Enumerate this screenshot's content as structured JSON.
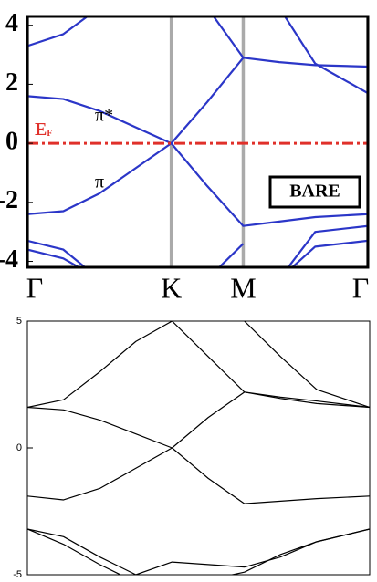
{
  "chart_data": [
    {
      "type": "line",
      "x": [
        0,
        0.25,
        0.5,
        0.75,
        1,
        1.25,
        1.5,
        1.75,
        2,
        2.366
      ],
      "xlim": [
        0,
        2.366
      ],
      "xticks": [
        {
          "value": 0,
          "label": "Γ"
        },
        {
          "value": 1,
          "label": "K"
        },
        {
          "value": 1.5,
          "label": "M"
        },
        {
          "value": 2.366,
          "label": "Γ"
        }
      ],
      "ylim": [
        -4.2,
        4.3
      ],
      "yticks": [
        -4,
        -2,
        0,
        2,
        4
      ],
      "symmetry_lines": true,
      "symmetry_line_color": "#aaaaaa",
      "fermi_level": 0,
      "fermi_color": "#e0302a",
      "fermi_label": "E",
      "fermi_label_sub": "F",
      "annotations": [
        "π*",
        "π"
      ],
      "box_label": "BARE",
      "series": [
        {
          "color": "#2b36c8",
          "values": [
            1.6,
            1.5,
            1.1,
            0.55,
            0,
            1.4,
            2.9,
            2.75,
            2.65,
            2.6
          ]
        },
        {
          "color": "#2b36c8",
          "values": [
            -2.4,
            -2.3,
            -1.7,
            -0.85,
            0,
            -1.45,
            -2.8,
            -2.65,
            -2.5,
            -2.4
          ]
        },
        {
          "color": "#2b36c8",
          "values": [
            3.3,
            3.7,
            4.6,
            null,
            null,
            null,
            null,
            null,
            null,
            null
          ]
        },
        {
          "color": "#2b36c8",
          "values": [
            null,
            null,
            null,
            null,
            null,
            4.6,
            2.9,
            null,
            null,
            null
          ]
        },
        {
          "color": "#2b36c8",
          "values": [
            null,
            null,
            null,
            null,
            null,
            null,
            null,
            4.6,
            2.7,
            1.7
          ]
        },
        {
          "color": "#2b36c8",
          "values": [
            -3.3,
            -3.6,
            -4.6,
            null,
            null,
            null,
            null,
            null,
            null,
            null
          ]
        },
        {
          "color": "#2b36c8",
          "values": [
            -3.6,
            -3.9,
            -4.6,
            null,
            null,
            null,
            null,
            null,
            null,
            null
          ]
        },
        {
          "color": "#2b36c8",
          "values": [
            null,
            null,
            null,
            null,
            null,
            -4.6,
            -3.4,
            null,
            null,
            null
          ]
        },
        {
          "color": "#2b36c8",
          "values": [
            null,
            null,
            null,
            null,
            null,
            null,
            null,
            -4.6,
            -3.0,
            -2.8
          ]
        },
        {
          "color": "#2b36c8",
          "values": [
            null,
            null,
            null,
            null,
            null,
            null,
            null,
            -4.6,
            -3.5,
            -3.3
          ]
        }
      ]
    },
    {
      "type": "line",
      "x": [
        0,
        0.25,
        0.5,
        0.75,
        1,
        1.25,
        1.5,
        1.75,
        2,
        2.366
      ],
      "xlim": [
        0,
        2.366
      ],
      "ylim": [
        -5,
        5
      ],
      "yticks": [
        -5,
        0,
        5
      ],
      "series": [
        {
          "color": "#000000",
          "values": [
            1.6,
            1.5,
            1.1,
            0.55,
            0,
            1.2,
            2.2,
            1.95,
            1.75,
            1.6
          ]
        },
        {
          "color": "#000000",
          "values": [
            -1.9,
            -2.05,
            -1.6,
            -0.8,
            0,
            -1.2,
            -2.2,
            -2.1,
            -2.0,
            -1.9
          ]
        },
        {
          "color": "#000000",
          "values": [
            1.6,
            1.9,
            3.0,
            4.2,
            5.0,
            3.6,
            2.2,
            2.0,
            1.85,
            1.6
          ]
        },
        {
          "color": "#000000",
          "values": [
            null,
            null,
            null,
            null,
            null,
            null,
            5.0,
            3.6,
            2.3,
            1.6
          ]
        },
        {
          "color": "#000000",
          "values": [
            -3.2,
            -3.5,
            -4.3,
            -5.0,
            -4.5,
            -4.6,
            -4.7,
            -4.3,
            -3.7,
            -3.2
          ]
        },
        {
          "color": "#000000",
          "values": [
            -3.2,
            -3.8,
            -4.6,
            -5.3,
            null,
            null,
            null,
            null,
            null,
            null
          ]
        },
        {
          "color": "#000000",
          "values": [
            null,
            null,
            null,
            null,
            null,
            -5.2,
            -4.9,
            -4.2,
            -3.7,
            -3.2
          ]
        }
      ]
    }
  ]
}
